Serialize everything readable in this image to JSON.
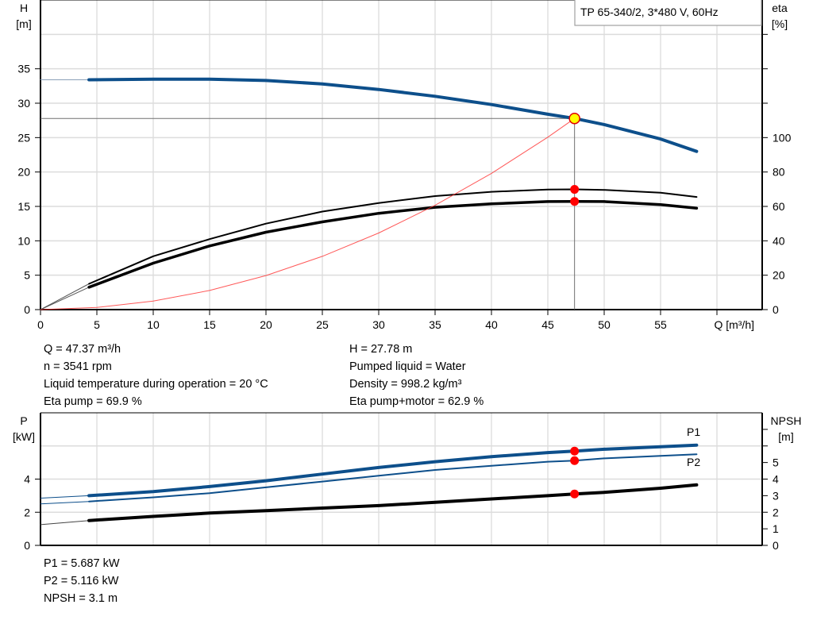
{
  "chart_data": [
    {
      "type": "line",
      "title": "TP 65-340/2, 3*480 V, 60Hz",
      "xlabel": "Q [m³/h]",
      "ylabel": "H\n[m]",
      "ylabel_lines": [
        "H",
        "[m]"
      ],
      "y2label_lines": [
        "eta",
        "[%]"
      ],
      "xlim": [
        0,
        64
      ],
      "ylim": [
        0,
        45
      ],
      "y2lim": [
        0,
        180
      ],
      "xticks": [
        "0",
        "5",
        "10",
        "15",
        "20",
        "25",
        "30",
        "35",
        "40",
        "45",
        "50",
        "55"
      ],
      "yticks": [
        "0",
        "5",
        "10",
        "15",
        "20",
        "25",
        "30",
        "35"
      ],
      "y2ticks": [
        "0",
        "20",
        "40",
        "60",
        "80",
        "100"
      ],
      "grid": true,
      "operating_point": {
        "Q": 47.37,
        "H": 27.78
      },
      "series": [
        {
          "axis": "left",
          "color": "#0d4f8b",
          "x": [
            4.3,
            10,
            15,
            20,
            25,
            30,
            35,
            40,
            45,
            47.37,
            50,
            55,
            58.2
          ],
          "y": [
            33.4,
            33.5,
            33.5,
            33.3,
            32.8,
            32.0,
            31.0,
            29.8,
            28.4,
            27.78,
            26.9,
            24.8,
            23.0
          ],
          "extension": {
            "x": [
              0,
              4.3
            ],
            "y": [
              33.4,
              33.4
            ]
          }
        },
        {
          "axis": "right",
          "color": "#000000",
          "x": [
            4.3,
            10,
            15,
            20,
            25,
            30,
            35,
            40,
            45,
            47.37,
            50,
            55,
            58.2
          ],
          "y": [
            15,
            31,
            41,
            50,
            57,
            62,
            66,
            68.5,
            69.8,
            69.9,
            69.6,
            68,
            65.5
          ],
          "extension": {
            "x": [
              0,
              4.3
            ],
            "y": [
              0,
              15
            ]
          }
        },
        {
          "axis": "right",
          "color": "#000000",
          "x": [
            4.3,
            10,
            15,
            20,
            25,
            30,
            35,
            40,
            45,
            47.37,
            50,
            55,
            58.2
          ],
          "y": [
            13,
            27,
            37,
            45,
            51,
            56,
            59.5,
            61.5,
            62.8,
            62.9,
            62.8,
            61,
            59
          ],
          "extension": {
            "x": [
              0,
              4.3
            ],
            "y": [
              0,
              13
            ]
          }
        },
        {
          "axis": "left",
          "color": "#ff3030",
          "x": [
            0,
            5,
            10,
            15,
            20,
            25,
            30,
            35,
            40,
            45,
            47.37
          ],
          "y": [
            0,
            0.31,
            1.24,
            2.78,
            4.95,
            7.74,
            11.14,
            15.16,
            19.8,
            25.06,
            27.78
          ]
        }
      ]
    },
    {
      "type": "line",
      "ylabel_lines": [
        "P",
        "[kW]"
      ],
      "y2label_lines": [
        "NPSH",
        "[m]"
      ],
      "xlim": [
        0,
        64
      ],
      "ylim": [
        0,
        8
      ],
      "y2lim": [
        0,
        8
      ],
      "yticks": [
        "0",
        "2",
        "4"
      ],
      "y2ticks": [
        "0",
        "1",
        "2",
        "3",
        "4",
        "5"
      ],
      "grid": true,
      "series": [
        {
          "name": "P1",
          "axis": "left",
          "color": "#0d4f8b",
          "x": [
            4.3,
            10,
            15,
            20,
            25,
            30,
            35,
            40,
            45,
            47.37,
            50,
            55,
            58.2
          ],
          "y": [
            3.0,
            3.25,
            3.55,
            3.9,
            4.3,
            4.7,
            5.05,
            5.35,
            5.6,
            5.687,
            5.8,
            5.95,
            6.05
          ],
          "extension": {
            "x": [
              0,
              4.3
            ],
            "y": [
              2.85,
              3.0
            ]
          }
        },
        {
          "name": "P2",
          "axis": "left",
          "color": "#0d4f8b",
          "x": [
            4.3,
            10,
            15,
            20,
            25,
            30,
            35,
            40,
            45,
            47.37,
            50,
            55,
            58.2
          ],
          "y": [
            2.65,
            2.9,
            3.15,
            3.5,
            3.85,
            4.2,
            4.55,
            4.8,
            5.05,
            5.116,
            5.25,
            5.4,
            5.5
          ],
          "extension": {
            "x": [
              0,
              4.3
            ],
            "y": [
              2.5,
              2.65
            ]
          }
        },
        {
          "axis": "right",
          "color": "#000000",
          "x": [
            4.3,
            10,
            15,
            20,
            25,
            30,
            35,
            40,
            45,
            47.37,
            50,
            55,
            58.2
          ],
          "y": [
            1.5,
            1.75,
            1.95,
            2.1,
            2.25,
            2.4,
            2.6,
            2.8,
            3.0,
            3.1,
            3.2,
            3.45,
            3.65
          ],
          "extension": {
            "x": [
              0,
              4.3
            ],
            "y": [
              1.25,
              1.5
            ]
          }
        }
      ]
    }
  ],
  "info_top_left": [
    "Q = 47.37 m³/h",
    "n = 3541 rpm",
    "Liquid temperature during operation = 20 °C",
    "Eta pump = 69.9 %"
  ],
  "info_top_right": [
    "H = 27.78 m",
    "Pumped liquid = Water",
    "Density = 998.2 kg/m³",
    "Eta pump+motor = 62.9 %"
  ],
  "info_bottom": [
    "P1 = 5.687 kW",
    "P2 = 5.116 kW",
    "NPSH = 3.1 m"
  ]
}
